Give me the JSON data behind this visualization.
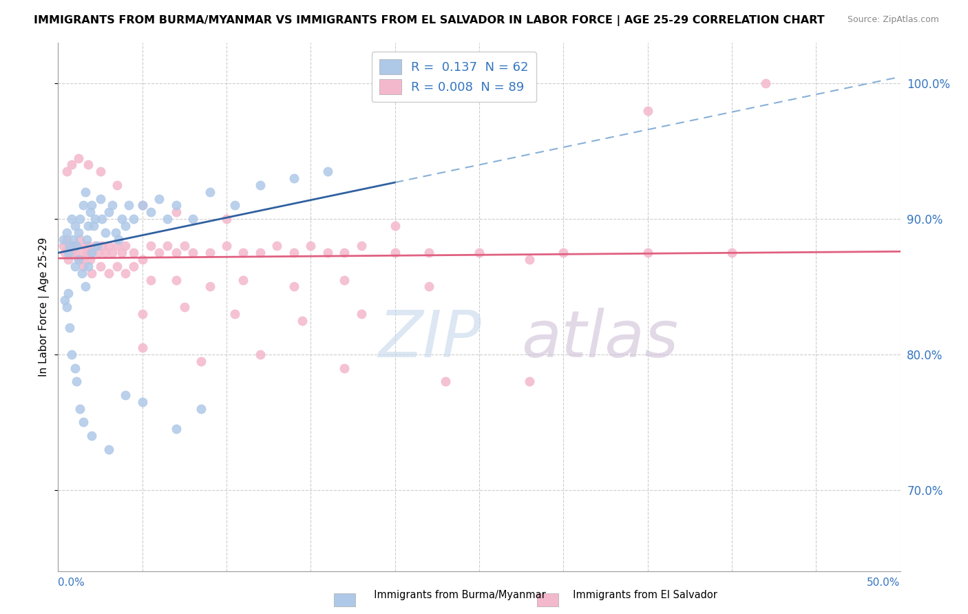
{
  "title": "IMMIGRANTS FROM BURMA/MYANMAR VS IMMIGRANTS FROM EL SALVADOR IN LABOR FORCE | AGE 25-29 CORRELATION CHART",
  "source": "Source: ZipAtlas.com",
  "ylabel_label": "In Labor Force | Age 25-29",
  "xlim": [
    0.0,
    50.0
  ],
  "ylim": [
    64.0,
    103.0
  ],
  "yticks": [
    70.0,
    80.0,
    90.0,
    100.0
  ],
  "ytick_labels": [
    "70.0%",
    "80.0%",
    "90.0%",
    "100.0%"
  ],
  "legend_blue_label": "R =  0.137  N = 62",
  "legend_pink_label": "R = 0.008  N = 89",
  "blue_color": "#aec8e8",
  "pink_color": "#f4b8cc",
  "blue_line_color": "#3060a0",
  "pink_line_color": "#e06080",
  "dashed_line_color": "#88b0d8",
  "blue_trend_x0": 0.0,
  "blue_trend_y0": 87.5,
  "blue_trend_x1": 50.0,
  "blue_trend_y1": 100.5,
  "blue_solid_x_end": 20.0,
  "pink_trend_x0": 0.0,
  "pink_trend_y0": 87.1,
  "pink_trend_x1": 50.0,
  "pink_trend_y1": 87.6,
  "dashed_x0": 0.0,
  "dashed_y0": 87.5,
  "dashed_x1": 50.0,
  "dashed_y1": 100.5,
  "blue_scatter_x": [
    0.3,
    0.5,
    0.6,
    0.7,
    0.8,
    0.9,
    1.0,
    1.1,
    1.2,
    1.3,
    1.5,
    1.6,
    1.7,
    1.8,
    1.9,
    2.0,
    2.1,
    2.2,
    2.3,
    2.5,
    2.6,
    2.8,
    3.0,
    3.2,
    3.4,
    3.6,
    3.8,
    4.0,
    4.2,
    4.5,
    5.0,
    5.5,
    6.0,
    6.5,
    7.0,
    8.0,
    9.0,
    10.5,
    12.0,
    14.0,
    16.0,
    1.0,
    1.2,
    1.4,
    1.6,
    1.8,
    2.0,
    0.4,
    0.5,
    0.6,
    0.7,
    0.8,
    1.0,
    1.1,
    1.3,
    1.5,
    2.0,
    3.0,
    4.0,
    5.0,
    7.0,
    8.5
  ],
  "blue_scatter_y": [
    88.5,
    89.0,
    87.5,
    88.0,
    90.0,
    88.5,
    89.5,
    88.0,
    89.0,
    90.0,
    91.0,
    92.0,
    88.5,
    89.5,
    90.5,
    91.0,
    89.5,
    90.0,
    88.0,
    91.5,
    90.0,
    89.0,
    90.5,
    91.0,
    89.0,
    88.5,
    90.0,
    89.5,
    91.0,
    90.0,
    91.0,
    90.5,
    91.5,
    90.0,
    91.0,
    90.0,
    92.0,
    91.0,
    92.5,
    93.0,
    93.5,
    86.5,
    87.0,
    86.0,
    85.0,
    86.5,
    87.5,
    84.0,
    83.5,
    84.5,
    82.0,
    80.0,
    79.0,
    78.0,
    76.0,
    75.0,
    74.0,
    73.0,
    77.0,
    76.5,
    74.5,
    76.0
  ],
  "pink_scatter_x": [
    0.3,
    0.4,
    0.5,
    0.6,
    0.7,
    0.8,
    0.9,
    1.0,
    1.1,
    1.2,
    1.3,
    1.4,
    1.5,
    1.6,
    1.7,
    1.8,
    1.9,
    2.0,
    2.2,
    2.4,
    2.6,
    2.8,
    3.0,
    3.2,
    3.5,
    3.8,
    4.0,
    4.5,
    5.0,
    5.5,
    6.0,
    6.5,
    7.0,
    7.5,
    8.0,
    9.0,
    10.0,
    11.0,
    12.0,
    13.0,
    14.0,
    15.0,
    16.0,
    17.0,
    18.0,
    20.0,
    22.0,
    25.0,
    28.0,
    30.0,
    35.0,
    40.0,
    42.0,
    1.5,
    2.0,
    2.5,
    3.0,
    3.5,
    4.0,
    4.5,
    5.5,
    7.0,
    9.0,
    11.0,
    14.0,
    17.0,
    22.0,
    5.0,
    7.5,
    10.5,
    14.5,
    18.0,
    5.0,
    8.5,
    12.0,
    17.0,
    23.0,
    28.0,
    0.5,
    0.8,
    1.2,
    1.8,
    2.5,
    3.5,
    5.0,
    7.0,
    10.0,
    20.0,
    35.0
  ],
  "pink_scatter_y": [
    88.0,
    87.5,
    88.5,
    87.0,
    88.0,
    87.5,
    88.0,
    87.5,
    88.0,
    87.0,
    88.5,
    87.0,
    87.5,
    88.0,
    87.5,
    88.0,
    87.0,
    87.5,
    88.0,
    87.5,
    88.0,
    87.5,
    88.0,
    87.5,
    88.0,
    87.5,
    88.0,
    87.5,
    87.0,
    88.0,
    87.5,
    88.0,
    87.5,
    88.0,
    87.5,
    87.5,
    88.0,
    87.5,
    87.5,
    88.0,
    87.5,
    88.0,
    87.5,
    87.5,
    88.0,
    87.5,
    87.5,
    87.5,
    87.0,
    87.5,
    87.5,
    87.5,
    100.0,
    86.5,
    86.0,
    86.5,
    86.0,
    86.5,
    86.0,
    86.5,
    85.5,
    85.5,
    85.0,
    85.5,
    85.0,
    85.5,
    85.0,
    83.0,
    83.5,
    83.0,
    82.5,
    83.0,
    80.5,
    79.5,
    80.0,
    79.0,
    78.0,
    78.0,
    93.5,
    94.0,
    94.5,
    94.0,
    93.5,
    92.5,
    91.0,
    90.5,
    90.0,
    89.5,
    98.0
  ]
}
